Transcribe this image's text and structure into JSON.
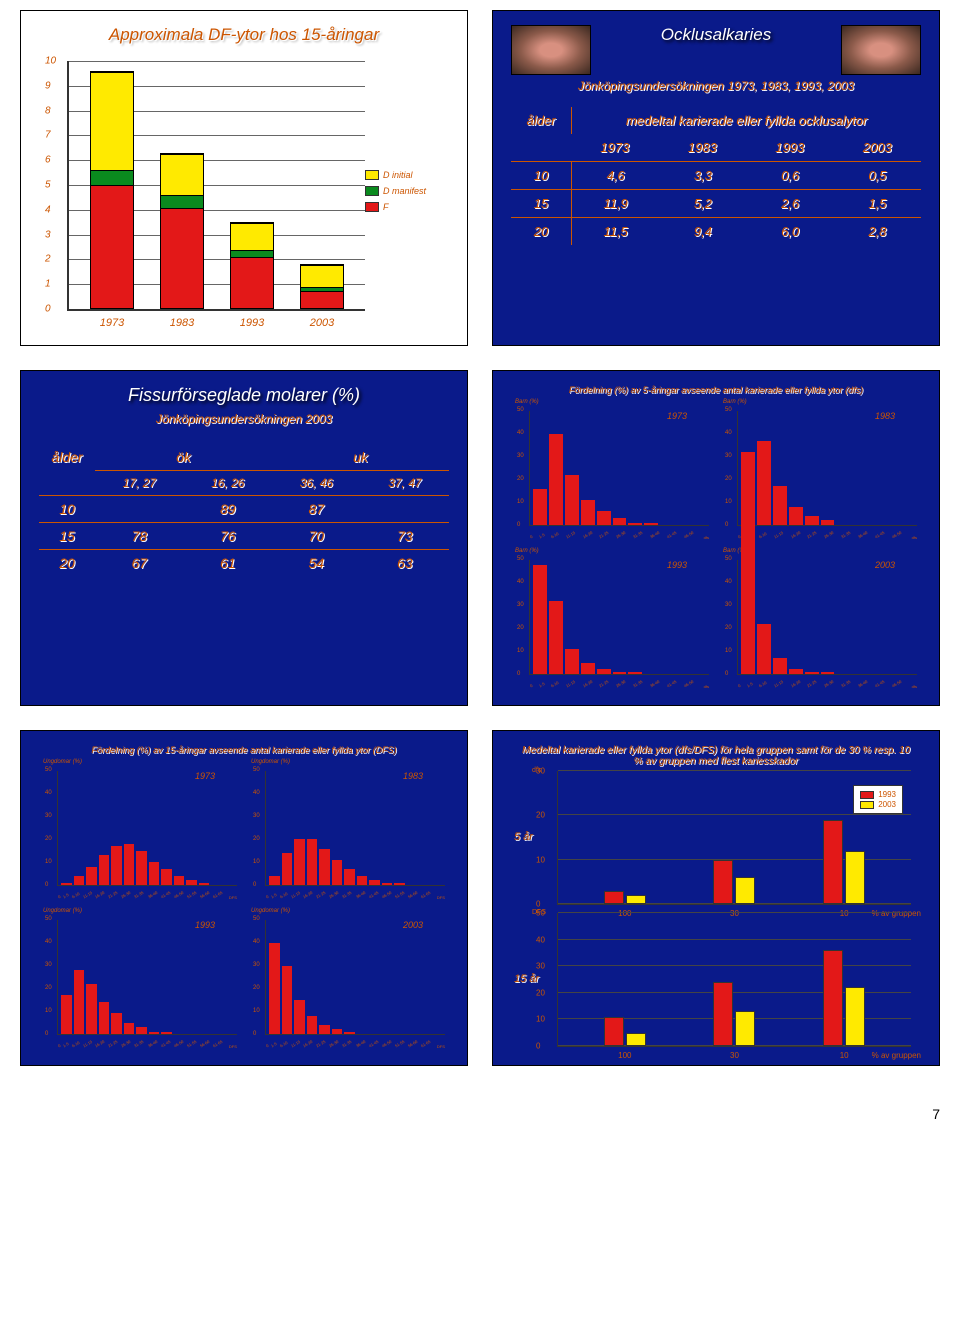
{
  "page_number": "7",
  "colors": {
    "bg": "#0a1a8a",
    "accent_text": "#cc5500",
    "red": "#e31818",
    "green": "#0a8a1e",
    "yellow": "#ffea00",
    "grid": "#666666"
  },
  "slide1": {
    "title": "Approximala DF-ytor hos 15-åringar",
    "fontsize_title": 17,
    "ymax": 10,
    "ytick_step": 1,
    "ylim": [
      0,
      10
    ],
    "yticks": [
      "0",
      "1",
      "2",
      "3",
      "4",
      "5",
      "6",
      "7",
      "8",
      "9",
      "10"
    ],
    "categories": [
      "1973",
      "1983",
      "1993",
      "2003"
    ],
    "series": [
      {
        "name": "F",
        "color": "#e31818"
      },
      {
        "name": "D manifest",
        "color": "#0a8a1e"
      },
      {
        "name": "D initial",
        "color": "#ffea00"
      }
    ],
    "legend_labels": [
      "D initial",
      "D manifest",
      "F"
    ],
    "stacks": [
      {
        "F": 5.0,
        "Dm": 0.6,
        "Di": 4.0
      },
      {
        "F": 4.1,
        "Dm": 0.5,
        "Di": 1.7
      },
      {
        "F": 2.1,
        "Dm": 0.3,
        "Di": 1.1
      },
      {
        "F": 0.7,
        "Dm": 0.2,
        "Di": 0.9
      }
    ]
  },
  "slide2": {
    "title": "Ocklusalkaries",
    "subtitle": "Jönköpingsundersökningen 1973, 1983, 1993, 2003",
    "header_main": "medeltal karierade eller fyllda ocklusalytor",
    "col_age": "ålder",
    "years": [
      "1973",
      "1983",
      "1993",
      "2003"
    ],
    "rows": [
      {
        "age": "10",
        "v": [
          "4,6",
          "3,3",
          "0,6",
          "0,5"
        ]
      },
      {
        "age": "15",
        "v": [
          "11,9",
          "5,2",
          "2,6",
          "1,5"
        ]
      },
      {
        "age": "20",
        "v": [
          "11,5",
          "9,4",
          "6,0",
          "2,8"
        ]
      }
    ]
  },
  "slide3": {
    "title": "Fissurförseglade molarer (%)",
    "subtitle": "Jönköpingsundersökningen 2003",
    "col_age": "ålder",
    "col_ok": "ök",
    "col_uk": "uk",
    "subcols": [
      "17, 27",
      "16, 26",
      "36, 46",
      "37, 47"
    ],
    "rows": [
      {
        "age": "10",
        "v": [
          "",
          "89",
          "87",
          ""
        ]
      },
      {
        "age": "15",
        "v": [
          "78",
          "76",
          "70",
          "73"
        ]
      },
      {
        "age": "20",
        "v": [
          "67",
          "61",
          "54",
          "63"
        ]
      }
    ]
  },
  "slide4": {
    "title": "Fördelning (%) av 5-åringar avseende antal karierade eller fyllda ytor (dfs)",
    "ylabel": "Barn (%)",
    "ylim": [
      0,
      50
    ],
    "ytick": 10,
    "bar_color": "#e31818",
    "xcats": [
      "0",
      "1-5",
      "6-10",
      "11-15",
      "16-20",
      "21-25",
      "26-30",
      "31-35",
      "36-40",
      "41-45",
      "46-50"
    ],
    "xlabel": "dfs",
    "panels": [
      {
        "year": "1973",
        "v": [
          16,
          40,
          22,
          11,
          6,
          3,
          1,
          1,
          0,
          0,
          0
        ]
      },
      {
        "year": "1983",
        "v": [
          32,
          37,
          17,
          8,
          4,
          2,
          0,
          0,
          0,
          0,
          0
        ]
      },
      {
        "year": "1993",
        "v": [
          48,
          32,
          11,
          5,
          2,
          1,
          1,
          0,
          0,
          0,
          0
        ]
      },
      {
        "year": "2003",
        "v": [
          67,
          22,
          7,
          2,
          1,
          1,
          0,
          0,
          0,
          0,
          0
        ]
      }
    ]
  },
  "slide5": {
    "title": "Fördelning (%) av 15-åringar avseende antal karierade eller fyllda ytor (DFS)",
    "ylabel": "Ungdomar (%)",
    "ylim": [
      0,
      50
    ],
    "ytick": 10,
    "bar_color": "#e31818",
    "xcats": [
      "0",
      "1-5",
      "6-10",
      "11-15",
      "16-20",
      "21-25",
      "26-30",
      "31-35",
      "36-40",
      "41-45",
      "46-50",
      "51-55",
      "56-60",
      "61-65"
    ],
    "xlabel": "DFS",
    "panels": [
      {
        "year": "1973",
        "v": [
          1,
          4,
          8,
          13,
          17,
          18,
          15,
          10,
          7,
          4,
          2,
          1,
          0,
          0
        ]
      },
      {
        "year": "1983",
        "v": [
          4,
          14,
          20,
          20,
          16,
          11,
          7,
          4,
          2,
          1,
          1,
          0,
          0,
          0
        ]
      },
      {
        "year": "1993",
        "v": [
          17,
          28,
          22,
          14,
          9,
          5,
          3,
          1,
          1,
          0,
          0,
          0,
          0,
          0
        ]
      },
      {
        "year": "2003",
        "v": [
          40,
          30,
          15,
          8,
          4,
          2,
          1,
          0,
          0,
          0,
          0,
          0,
          0,
          0
        ]
      }
    ]
  },
  "slide6": {
    "title": "Medeltal karierade eller fyllda ytor (dfs/DFS) för hela gruppen samt för de 30 % resp. 10 % av gruppen med flest kariesskador",
    "ylabel": "dfs",
    "ylabel2": "DFS",
    "ylim": [
      0,
      50
    ],
    "ytick": 10,
    "ylim1": [
      0,
      30
    ],
    "xcats": [
      "100",
      "30",
      "10"
    ],
    "xlabel": "% av gruppen",
    "legend": [
      "1993",
      "2003"
    ],
    "colors": {
      "1993": "#e31818",
      "2003": "#ffea00"
    },
    "panels": [
      {
        "label": "5 år",
        "rows": [
          {
            "g": "100",
            "v": [
              3,
              2
            ]
          },
          {
            "g": "30",
            "v": [
              10,
              6
            ]
          },
          {
            "g": "10",
            "v": [
              19,
              12
            ]
          }
        ],
        "ymax": 30
      },
      {
        "label": "15 år",
        "rows": [
          {
            "g": "100",
            "v": [
              11,
              5
            ]
          },
          {
            "g": "30",
            "v": [
              24,
              13
            ]
          },
          {
            "g": "10",
            "v": [
              36,
              22
            ]
          }
        ],
        "ymax": 50
      }
    ]
  }
}
